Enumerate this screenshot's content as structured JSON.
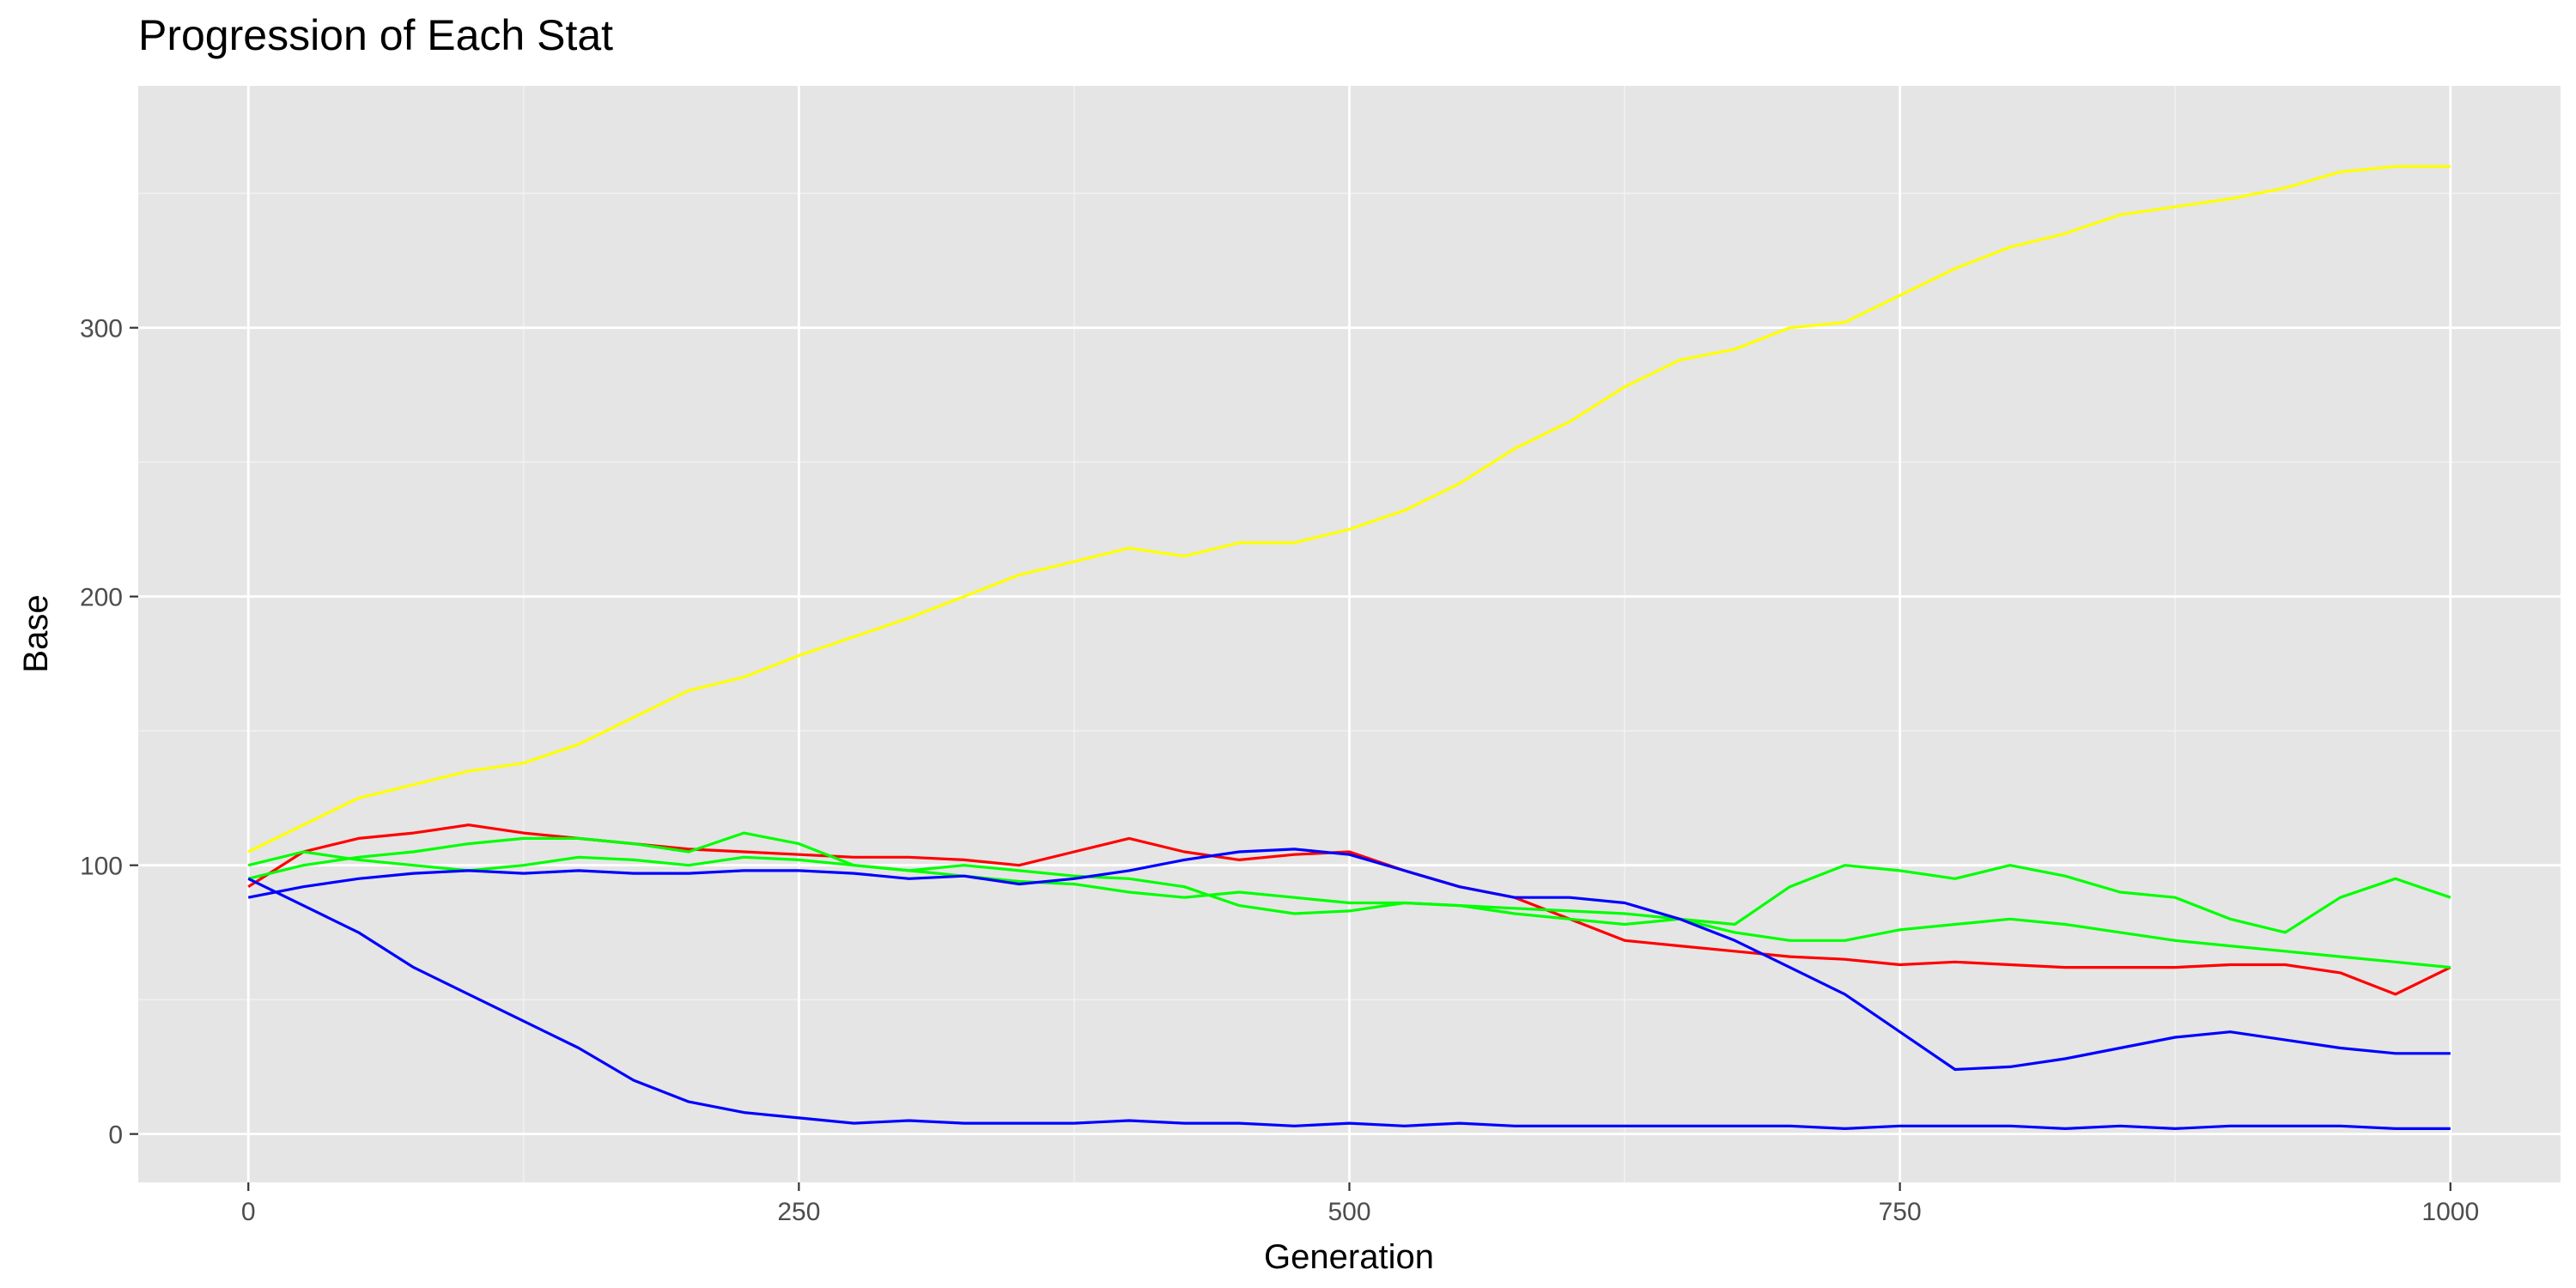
{
  "chart_data": {
    "type": "line",
    "title": "Progression of Each Stat",
    "xlabel": "Generation",
    "ylabel": "Base",
    "xlim": [
      -50,
      1050
    ],
    "ylim": [
      -18,
      390
    ],
    "x_ticks": [
      0,
      250,
      500,
      750,
      1000
    ],
    "y_ticks": [
      0,
      100,
      200,
      300
    ],
    "x_tick_labels": [
      "0",
      "250",
      "500",
      "750",
      "1000"
    ],
    "y_tick_labels": [
      "0",
      "100",
      "200",
      "300"
    ],
    "grid": true,
    "legend": "none",
    "series": [
      {
        "color": "#FFFF00",
        "x": [
          0,
          25,
          50,
          75,
          100,
          125,
          150,
          175,
          200,
          225,
          250,
          275,
          300,
          325,
          350,
          375,
          400,
          425,
          450,
          475,
          500,
          525,
          550,
          575,
          600,
          625,
          650,
          675,
          700,
          725,
          750,
          775,
          800,
          825,
          850,
          875,
          900,
          925,
          950,
          975,
          1000
        ],
        "values": [
          105,
          115,
          125,
          130,
          135,
          138,
          145,
          155,
          165,
          170,
          178,
          185,
          192,
          200,
          208,
          213,
          218,
          215,
          220,
          220,
          225,
          232,
          242,
          255,
          265,
          278,
          288,
          292,
          300,
          302,
          312,
          322,
          330,
          335,
          342,
          345,
          348,
          352,
          358,
          360,
          360
        ]
      },
      {
        "color": "#FF0000",
        "x": [
          0,
          25,
          50,
          75,
          100,
          125,
          150,
          175,
          200,
          225,
          250,
          275,
          300,
          325,
          350,
          375,
          400,
          425,
          450,
          475,
          500,
          525,
          550,
          575,
          600,
          625,
          650,
          675,
          700,
          725,
          750,
          775,
          800,
          825,
          850,
          875,
          900,
          925,
          950,
          975,
          1000
        ],
        "values": [
          92,
          105,
          110,
          112,
          115,
          112,
          110,
          108,
          106,
          105,
          104,
          103,
          103,
          102,
          100,
          105,
          110,
          105,
          102,
          104,
          105,
          98,
          92,
          88,
          80,
          72,
          70,
          68,
          66,
          65,
          63,
          64,
          63,
          62,
          62,
          62,
          63,
          63,
          60,
          52,
          62
        ]
      },
      {
        "color": "#00FF00",
        "x": [
          0,
          25,
          50,
          75,
          100,
          125,
          150,
          175,
          200,
          225,
          250,
          275,
          300,
          325,
          350,
          375,
          400,
          425,
          450,
          475,
          500,
          525,
          550,
          575,
          600,
          625,
          650,
          675,
          700,
          725,
          750,
          775,
          800,
          825,
          850,
          875,
          900,
          925,
          950,
          975,
          1000
        ],
        "values": [
          95,
          100,
          103,
          105,
          108,
          110,
          110,
          108,
          105,
          112,
          108,
          100,
          98,
          100,
          98,
          96,
          95,
          92,
          85,
          82,
          83,
          86,
          85,
          82,
          80,
          78,
          80,
          78,
          92,
          100,
          98,
          95,
          100,
          96,
          90,
          88,
          80,
          75,
          88,
          95,
          88
        ]
      },
      {
        "color": "#00FF00",
        "x": [
          0,
          25,
          50,
          75,
          100,
          125,
          150,
          175,
          200,
          225,
          250,
          275,
          300,
          325,
          350,
          375,
          400,
          425,
          450,
          475,
          500,
          525,
          550,
          575,
          600,
          625,
          650,
          675,
          700,
          725,
          750,
          775,
          800,
          825,
          850,
          875,
          900,
          925,
          950,
          975,
          1000
        ],
        "values": [
          100,
          105,
          102,
          100,
          98,
          100,
          103,
          102,
          100,
          103,
          102,
          100,
          98,
          96,
          94,
          93,
          90,
          88,
          90,
          88,
          86,
          86,
          85,
          84,
          83,
          82,
          80,
          75,
          72,
          72,
          76,
          78,
          80,
          78,
          75,
          72,
          70,
          68,
          66,
          64,
          62
        ]
      },
      {
        "color": "#0000FF",
        "x": [
          0,
          25,
          50,
          75,
          100,
          125,
          150,
          175,
          200,
          225,
          250,
          275,
          300,
          325,
          350,
          375,
          400,
          425,
          450,
          475,
          500,
          525,
          550,
          575,
          600,
          625,
          650,
          675,
          700,
          725,
          750,
          775,
          800,
          825,
          850,
          875,
          900,
          925,
          950,
          975,
          1000
        ],
        "values": [
          88,
          92,
          95,
          97,
          98,
          97,
          98,
          97,
          97,
          98,
          98,
          97,
          95,
          96,
          93,
          95,
          98,
          102,
          105,
          106,
          104,
          98,
          92,
          88,
          88,
          86,
          80,
          72,
          62,
          52,
          38,
          24,
          25,
          28,
          32,
          36,
          38,
          35,
          32,
          30,
          30
        ]
      },
      {
        "color": "#0000FF",
        "x": [
          0,
          25,
          50,
          75,
          100,
          125,
          150,
          175,
          200,
          225,
          250,
          275,
          300,
          325,
          350,
          375,
          400,
          425,
          450,
          475,
          500,
          525,
          550,
          575,
          600,
          625,
          650,
          675,
          700,
          725,
          750,
          775,
          800,
          825,
          850,
          875,
          900,
          925,
          950,
          975,
          1000
        ],
        "values": [
          95,
          85,
          75,
          62,
          52,
          42,
          32,
          20,
          12,
          8,
          6,
          4,
          5,
          4,
          4,
          4,
          5,
          4,
          4,
          3,
          4,
          3,
          4,
          3,
          3,
          3,
          3,
          3,
          3,
          2,
          3,
          3,
          3,
          2,
          3,
          2,
          3,
          3,
          3,
          2,
          2
        ]
      }
    ]
  }
}
